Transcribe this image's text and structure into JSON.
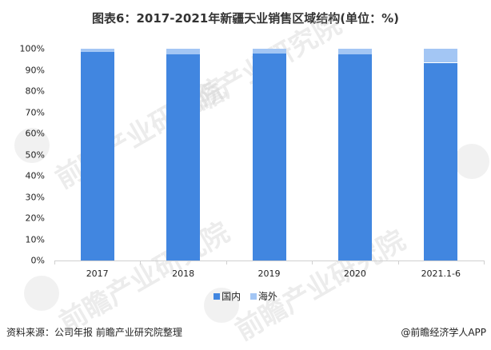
{
  "title": "图表6：2017-2021年新疆天业销售区域结构(单位：%)",
  "colors": {
    "domestic": "#4186e0",
    "overseas": "#a3c6f4",
    "axis": "#d0d0d0"
  },
  "y_axis": {
    "ticks": [
      "100%",
      "90%",
      "80%",
      "70%",
      "60%",
      "50%",
      "40%",
      "30%",
      "20%",
      "10%",
      "0%"
    ]
  },
  "legend": {
    "items": [
      {
        "label": "国内",
        "color": "#4186e0"
      },
      {
        "label": "海外",
        "color": "#a3c6f4"
      }
    ]
  },
  "source": "资料来源：公司年报 前瞻产业研究院整理",
  "credit": "@前瞻经济学人APP",
  "watermark": "前瞻产业研究院",
  "chart_data": {
    "type": "bar",
    "stacked": true,
    "title": "图表6：2017-2021年新疆天业销售区域结构(单位：%)",
    "categories": [
      "2017",
      "2018",
      "2019",
      "2020",
      "2021.1-6"
    ],
    "series": [
      {
        "name": "国内",
        "values": [
          98.4,
          97.4,
          97.8,
          97.4,
          93.4
        ]
      },
      {
        "name": "海外",
        "values": [
          1.6,
          2.6,
          2.2,
          2.6,
          6.6
        ]
      }
    ],
    "xlabel": "",
    "ylabel": "",
    "ylim": [
      0,
      100
    ],
    "yticks": [
      "0%",
      "10%",
      "20%",
      "30%",
      "40%",
      "50%",
      "60%",
      "70%",
      "80%",
      "90%",
      "100%"
    ],
    "legend_position": "bottom",
    "grid": false
  }
}
